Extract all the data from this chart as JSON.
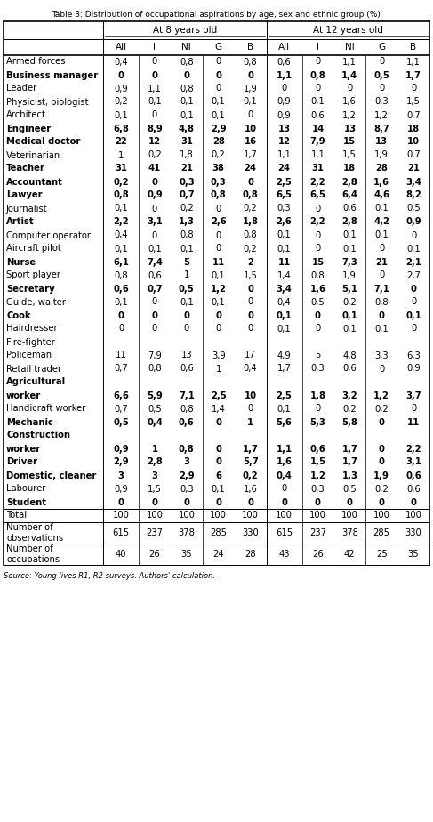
{
  "title": "Table 3: Distribution of occupational aspirations by age, sex and ethnic group (%)",
  "footer": "Source: Young lives R1, R2 surveys. Authors' calculation.",
  "col_headers_row2": [
    "All",
    "I",
    "NI",
    "G",
    "B",
    "All",
    "I",
    "NI",
    "G",
    "B"
  ],
  "rows": [
    {
      "label": "Armed forces",
      "bold": false,
      "vals": [
        "0,4",
        "0",
        "0,8",
        "0",
        "0,8",
        "0,6",
        "0",
        "1,1",
        "0",
        "1,1"
      ]
    },
    {
      "label": "Business manager",
      "bold": true,
      "vals": [
        "0",
        "0",
        "0",
        "0",
        "0",
        "1,1",
        "0,8",
        "1,4",
        "0,5",
        "1,7"
      ]
    },
    {
      "label": "Leader",
      "bold": false,
      "vals": [
        "0,9",
        "1,1",
        "0,8",
        "0",
        "1,9",
        "0",
        "0",
        "0",
        "0",
        "0"
      ]
    },
    {
      "label": "Physicist, biologist",
      "bold": false,
      "vals": [
        "0,2",
        "0,1",
        "0,1",
        "0,1",
        "0,1",
        "0,9",
        "0,1",
        "1,6",
        "0,3",
        "1,5"
      ]
    },
    {
      "label": "Architect",
      "bold": false,
      "vals": [
        "0,1",
        "0",
        "0,1",
        "0,1",
        "0",
        "0,9",
        "0,6",
        "1,2",
        "1,2",
        "0,7"
      ]
    },
    {
      "label": "Engineer",
      "bold": true,
      "vals": [
        "6,8",
        "8,9",
        "4,8",
        "2,9",
        "10",
        "13",
        "14",
        "13",
        "8,7",
        "18"
      ]
    },
    {
      "label": "Medical doctor",
      "bold": true,
      "vals": [
        "22",
        "12",
        "31",
        "28",
        "16",
        "12",
        "7,9",
        "15",
        "13",
        "10"
      ]
    },
    {
      "label": "Veterinarian",
      "bold": false,
      "vals": [
        "1",
        "0,2",
        "1,8",
        "0,2",
        "1,7",
        "1,1",
        "1,1",
        "1,5",
        "1,9",
        "0,7"
      ]
    },
    {
      "label": "Teacher",
      "bold": true,
      "vals": [
        "31",
        "41",
        "21",
        "38",
        "24",
        "24",
        "31",
        "18",
        "28",
        "21"
      ]
    },
    {
      "label": "Accountant",
      "bold": true,
      "vals": [
        "0,2",
        "0",
        "0,3",
        "0,3",
        "0",
        "2,5",
        "2,2",
        "2,8",
        "1,6",
        "3,4"
      ]
    },
    {
      "label": "Lawyer",
      "bold": true,
      "vals": [
        "0,8",
        "0,9",
        "0,7",
        "0,8",
        "0,8",
        "6,5",
        "6,5",
        "6,4",
        "4,6",
        "8,2"
      ]
    },
    {
      "label": "Journalist",
      "bold": false,
      "vals": [
        "0,1",
        "0",
        "0,2",
        "0",
        "0,2",
        "0,3",
        "0",
        "0,6",
        "0,1",
        "0,5"
      ]
    },
    {
      "label": "Artist",
      "bold": true,
      "vals": [
        "2,2",
        "3,1",
        "1,3",
        "2,6",
        "1,8",
        "2,6",
        "2,2",
        "2,8",
        "4,2",
        "0,9"
      ]
    },
    {
      "label": "Computer operator",
      "bold": false,
      "vals": [
        "0,4",
        "0",
        "0,8",
        "0",
        "0,8",
        "0,1",
        "0",
        "0,1",
        "0,1",
        "0"
      ]
    },
    {
      "label": "Aircraft pilot",
      "bold": false,
      "vals": [
        "0,1",
        "0,1",
        "0,1",
        "0",
        "0,2",
        "0,1",
        "0",
        "0,1",
        "0",
        "0,1"
      ]
    },
    {
      "label": "Nurse",
      "bold": true,
      "vals": [
        "6,1",
        "7,4",
        "5",
        "11",
        "2",
        "11",
        "15",
        "7,3",
        "21",
        "2,1"
      ]
    },
    {
      "label": "Sport player",
      "bold": false,
      "vals": [
        "0,8",
        "0,6",
        "1",
        "0,1",
        "1,5",
        "1,4",
        "0,8",
        "1,9",
        "0",
        "2,7"
      ]
    },
    {
      "label": "Secretary",
      "bold": true,
      "vals": [
        "0,6",
        "0,7",
        "0,5",
        "1,2",
        "0",
        "3,4",
        "1,6",
        "5,1",
        "7,1",
        "0"
      ]
    },
    {
      "label": "Guide, waiter",
      "bold": false,
      "vals": [
        "0,1",
        "0",
        "0,1",
        "0,1",
        "0",
        "0,4",
        "0,5",
        "0,2",
        "0,8",
        "0"
      ]
    },
    {
      "label": "Cook",
      "bold": true,
      "vals": [
        "0",
        "0",
        "0",
        "0",
        "0",
        "0,1",
        "0",
        "0,1",
        "0",
        "0,1"
      ]
    },
    {
      "label": "Hairdresser",
      "bold": false,
      "vals": [
        "0",
        "0",
        "0",
        "0",
        "0",
        "0,1",
        "0",
        "0,1",
        "0,1",
        "0"
      ]
    },
    {
      "label": "Fire-fighter",
      "bold": false,
      "vals": [
        "",
        "",
        "",
        "",
        "",
        "",
        "",
        "",
        "",
        ""
      ]
    },
    {
      "label": "Policeman",
      "bold": false,
      "vals": [
        "11",
        "7,9",
        "13",
        "3,9",
        "17",
        "4,9",
        "5",
        "4,8",
        "3,3",
        "6,3"
      ]
    },
    {
      "label": "Retail trader",
      "bold": false,
      "vals": [
        "0,7",
        "0,8",
        "0,6",
        "1",
        "0,4",
        "1,7",
        "0,3",
        "0,6",
        "0",
        "0,9"
      ]
    },
    {
      "label": "Agricultural",
      "bold": true,
      "vals": [
        "",
        "",
        "",
        "",
        "",
        "",
        "",
        "",
        "",
        ""
      ]
    },
    {
      "label": "worker",
      "bold": true,
      "vals": [
        "6,6",
        "5,9",
        "7,1",
        "2,5",
        "10",
        "2,5",
        "1,8",
        "3,2",
        "1,2",
        "3,7"
      ]
    },
    {
      "label": "Handicraft worker",
      "bold": false,
      "vals": [
        "0,7",
        "0,5",
        "0,8",
        "1,4",
        "0",
        "0,1",
        "0",
        "0,2",
        "0,2",
        "0"
      ]
    },
    {
      "label": "Mechanic",
      "bold": true,
      "vals": [
        "0,5",
        "0,4",
        "0,6",
        "0",
        "1",
        "5,6",
        "5,3",
        "5,8",
        "0",
        "11"
      ]
    },
    {
      "label": "Construction",
      "bold": true,
      "vals": [
        "",
        "",
        "",
        "",
        "",
        "",
        "",
        "",
        "",
        ""
      ]
    },
    {
      "label": "worker",
      "bold": true,
      "vals": [
        "0,9",
        "1",
        "0,8",
        "0",
        "1,7",
        "1,1",
        "0,6",
        "1,7",
        "0",
        "2,2"
      ]
    },
    {
      "label": "Driver",
      "bold": true,
      "vals": [
        "2,9",
        "2,8",
        "3",
        "0",
        "5,7",
        "1,6",
        "1,5",
        "1,7",
        "0",
        "3,1"
      ]
    },
    {
      "label": "Domestic, cleaner",
      "bold": true,
      "vals": [
        "3",
        "3",
        "2,9",
        "6",
        "0,2",
        "0,4",
        "1,2",
        "1,3",
        "1,9",
        "0,6"
      ]
    },
    {
      "label": "Labourer",
      "bold": false,
      "vals": [
        "0,9",
        "1,5",
        "0,3",
        "0,1",
        "1,6",
        "0",
        "0,3",
        "0,5",
        "0,2",
        "0,6"
      ]
    },
    {
      "label": "Student",
      "bold": true,
      "vals": [
        "0",
        "0",
        "0",
        "0",
        "0",
        "0",
        "0",
        "0",
        "0",
        "0"
      ]
    },
    {
      "label": "Total",
      "bold": false,
      "vals": [
        "100",
        "100",
        "100",
        "100",
        "100",
        "100",
        "100",
        "100",
        "100",
        "100"
      ]
    },
    {
      "label": "Number of\nobservations",
      "bold": false,
      "vals": [
        "615",
        "237",
        "378",
        "285",
        "330",
        "615",
        "237",
        "378",
        "285",
        "330"
      ]
    },
    {
      "label": "Number of\noccupations",
      "bold": false,
      "vals": [
        "40",
        "26",
        "35",
        "24",
        "28",
        "43",
        "26",
        "42",
        "25",
        "35"
      ]
    }
  ]
}
